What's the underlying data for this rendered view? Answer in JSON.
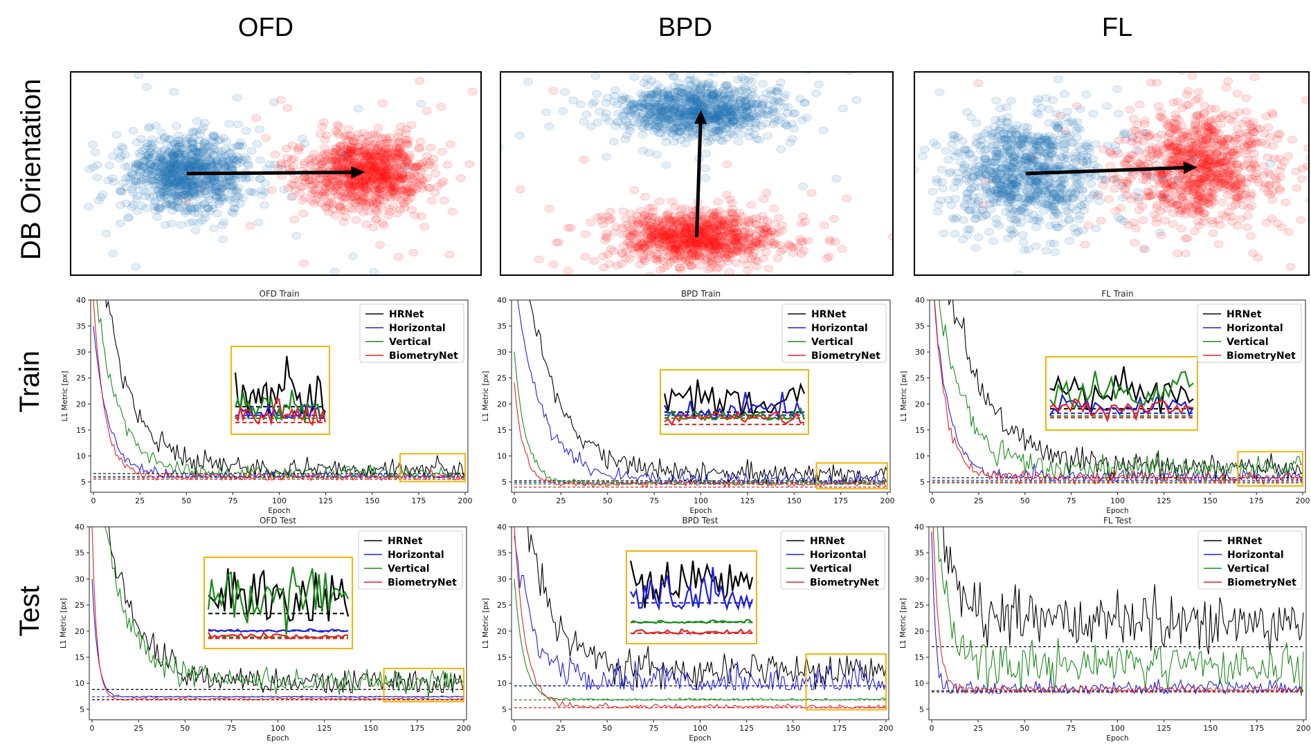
{
  "column_titles": [
    "OFD",
    "BPD",
    "FL"
  ],
  "row_titles": [
    "DB Orientation",
    "Train",
    "Test"
  ],
  "colors": {
    "HRNet": "#000000",
    "Horizontal": "#1f1fdc",
    "Vertical": "#1a8a1a",
    "BiometryNet": "#e82020",
    "blue_cluster": "#1f77b4",
    "red_cluster": "#ff1010",
    "zoom_box": "#f5b400"
  },
  "chart_data": [
    {
      "type": "scatter",
      "title": "",
      "note": "DB Orientation OFD",
      "series": [
        {
          "name": "",
          "color": "#1f77b4",
          "center": [
            -1.0,
            0.0
          ],
          "spread": [
            0.35,
            0.3
          ]
        },
        {
          "name": "",
          "color": "#ff1010",
          "center": [
            1.0,
            0.0
          ],
          "spread": [
            0.35,
            0.3
          ]
        }
      ],
      "arrow": {
        "from": [
          -1.0,
          0.0
        ],
        "to": [
          1.0,
          0.02
        ]
      }
    },
    {
      "type": "scatter",
      "title": "",
      "note": "DB Orientation BPD",
      "series": [
        {
          "name": "",
          "color": "#1f77b4",
          "center": [
            0.0,
            1.0
          ],
          "spread": [
            0.5,
            0.22
          ]
        },
        {
          "name": "",
          "color": "#ff1010",
          "center": [
            0.0,
            -1.0
          ],
          "spread": [
            0.5,
            0.22
          ]
        }
      ],
      "arrow": {
        "from": [
          0.0,
          -1.0
        ],
        "to": [
          0.05,
          1.0
        ]
      }
    },
    {
      "type": "scatter",
      "title": "",
      "note": "DB Orientation FL",
      "series": [
        {
          "name": "",
          "color": "#1f77b4",
          "center": [
            -1.0,
            0.0
          ],
          "spread": [
            0.45,
            0.45
          ]
        },
        {
          "name": "",
          "color": "#ff1010",
          "center": [
            1.0,
            0.1
          ],
          "spread": [
            0.45,
            0.45
          ]
        }
      ],
      "arrow": {
        "from": [
          -1.0,
          0.0
        ],
        "to": [
          1.0,
          0.1
        ]
      }
    },
    {
      "type": "line",
      "title": "OFD Train",
      "xlabel": "Epoch",
      "ylabel": "L1 Metric [px]",
      "xlim": [
        0,
        200
      ],
      "ylim": [
        3,
        40
      ],
      "xticks": [
        0,
        25,
        50,
        75,
        100,
        125,
        150,
        175,
        200
      ],
      "yticks": [
        5,
        10,
        15,
        20,
        25,
        30,
        35,
        40
      ],
      "series": [
        {
          "name": "HRNet",
          "start": 60,
          "decay": 15,
          "final": 7.5,
          "noise": 1.1,
          "baseline": 6.6
        },
        {
          "name": "Horizontal",
          "start": 35,
          "decay": 8,
          "final": 6.2,
          "noise": 0.45,
          "baseline": 6.0
        },
        {
          "name": "Vertical",
          "start": 45,
          "decay": 12,
          "final": 6.8,
          "noise": 0.7,
          "baseline": 5.8
        },
        {
          "name": "BiometryNet",
          "start": 40,
          "decay": 6,
          "final": 6.0,
          "noise": 0.45,
          "baseline": 5.5
        }
      ]
    },
    {
      "type": "line",
      "title": "BPD Train",
      "xlabel": "Epoch",
      "ylabel": "L1 Metric [px]",
      "xlim": [
        0,
        200
      ],
      "ylim": [
        3,
        40
      ],
      "xticks": [
        0,
        25,
        50,
        75,
        100,
        125,
        150,
        175,
        200
      ],
      "yticks": [
        5,
        10,
        15,
        20,
        25,
        30,
        35,
        40
      ],
      "series": [
        {
          "name": "HRNet",
          "start": 60,
          "decay": 18,
          "final": 6.5,
          "noise": 1.0,
          "baseline": 5.2
        },
        {
          "name": "Horizontal",
          "start": 45,
          "decay": 14,
          "final": 5.4,
          "noise": 0.7,
          "baseline": 4.9
        },
        {
          "name": "Vertical",
          "start": 30,
          "decay": 6,
          "final": 4.8,
          "noise": 0.35,
          "baseline": 4.6
        },
        {
          "name": "BiometryNet",
          "start": 24,
          "decay": 5,
          "final": 4.6,
          "noise": 0.3,
          "baseline": 4.0
        }
      ]
    },
    {
      "type": "line",
      "title": "FL Train",
      "xlabel": "Epoch",
      "ylabel": "L1 Metric [px]",
      "xlim": [
        0,
        200
      ],
      "ylim": [
        3,
        40
      ],
      "xticks": [
        0,
        25,
        50,
        75,
        100,
        125,
        150,
        175,
        200
      ],
      "yticks": [
        5,
        10,
        15,
        20,
        25,
        30,
        35,
        40
      ],
      "series": [
        {
          "name": "HRNet",
          "start": 60,
          "decay": 22,
          "final": 7.5,
          "noise": 1.3,
          "baseline": 5.8
        },
        {
          "name": "Horizontal",
          "start": 45,
          "decay": 8,
          "final": 6.0,
          "noise": 0.6,
          "baseline": 5.3
        },
        {
          "name": "Vertical",
          "start": 50,
          "decay": 14,
          "final": 7.5,
          "noise": 1.2,
          "baseline": 5.0
        },
        {
          "name": "BiometryNet",
          "start": 45,
          "decay": 7,
          "final": 5.8,
          "noise": 0.6,
          "baseline": 4.8
        }
      ]
    },
    {
      "type": "line",
      "title": "OFD Test",
      "xlabel": "Epoch",
      "ylabel": "L1 Metric [px]",
      "xlim": [
        0,
        200
      ],
      "ylim": [
        3,
        40
      ],
      "xticks": [
        0,
        25,
        50,
        75,
        100,
        125,
        150,
        175,
        200
      ],
      "yticks": [
        5,
        10,
        15,
        20,
        25,
        30,
        35,
        40
      ],
      "series": [
        {
          "name": "HRNet",
          "start": 60,
          "decay": 16,
          "final": 10.0,
          "noise": 1.3,
          "baseline": 8.8
        },
        {
          "name": "Horizontal",
          "start": 30,
          "decay": 3,
          "final": 7.2,
          "noise": 0.15,
          "baseline": 7.4
        },
        {
          "name": "Vertical",
          "start": 60,
          "decay": 14,
          "final": 10.3,
          "noise": 1.2,
          "baseline": 6.9
        },
        {
          "name": "BiometryNet",
          "start": 40,
          "decay": 2.5,
          "final": 7.0,
          "noise": 0.15,
          "baseline": 6.8
        }
      ]
    },
    {
      "type": "line",
      "title": "BPD Test",
      "xlabel": "Epoch",
      "ylabel": "L1 Metric [px]",
      "xlim": [
        0,
        200
      ],
      "ylim": [
        3,
        40
      ],
      "xticks": [
        0,
        25,
        50,
        75,
        100,
        125,
        150,
        175,
        200
      ],
      "yticks": [
        5,
        10,
        15,
        20,
        25,
        30,
        35,
        40
      ],
      "series": [
        {
          "name": "HRNet",
          "start": 60,
          "decay": 14,
          "final": 12.5,
          "noise": 1.7,
          "baseline": 9.5
        },
        {
          "name": "Horizontal",
          "start": 38,
          "decay": 10,
          "final": 10.5,
          "noise": 1.6,
          "baseline": 9.5
        },
        {
          "name": "Vertical",
          "start": 30,
          "decay": 5,
          "final": 6.8,
          "noise": 0.2,
          "baseline": 6.8
        },
        {
          "name": "BiometryNet",
          "start": 40,
          "decay": 6,
          "final": 5.5,
          "noise": 0.25,
          "baseline": 5.3
        }
      ]
    },
    {
      "type": "line",
      "title": "FL Test",
      "xlabel": "Epoch",
      "ylabel": "L1 Metric [px]",
      "xlim": [
        0,
        200
      ],
      "ylim": [
        3,
        40
      ],
      "xticks": [
        0,
        25,
        50,
        75,
        100,
        125,
        150,
        175,
        200
      ],
      "yticks": [
        5,
        10,
        15,
        20,
        25,
        30,
        35,
        40
      ],
      "series": [
        {
          "name": "HRNet",
          "start": 60,
          "decay": 8,
          "final": 22.0,
          "noise": 3.0,
          "baseline": 17.0
        },
        {
          "name": "Horizontal",
          "start": 39,
          "decay": 2,
          "final": 9.0,
          "noise": 0.8,
          "baseline": 8.4
        },
        {
          "name": "Vertical",
          "start": 60,
          "decay": 6,
          "final": 13.5,
          "noise": 2.2,
          "baseline": 8.6
        },
        {
          "name": "BiometryNet",
          "start": 50,
          "decay": 3,
          "final": 8.8,
          "noise": 0.4,
          "baseline": 8.3
        }
      ]
    }
  ]
}
